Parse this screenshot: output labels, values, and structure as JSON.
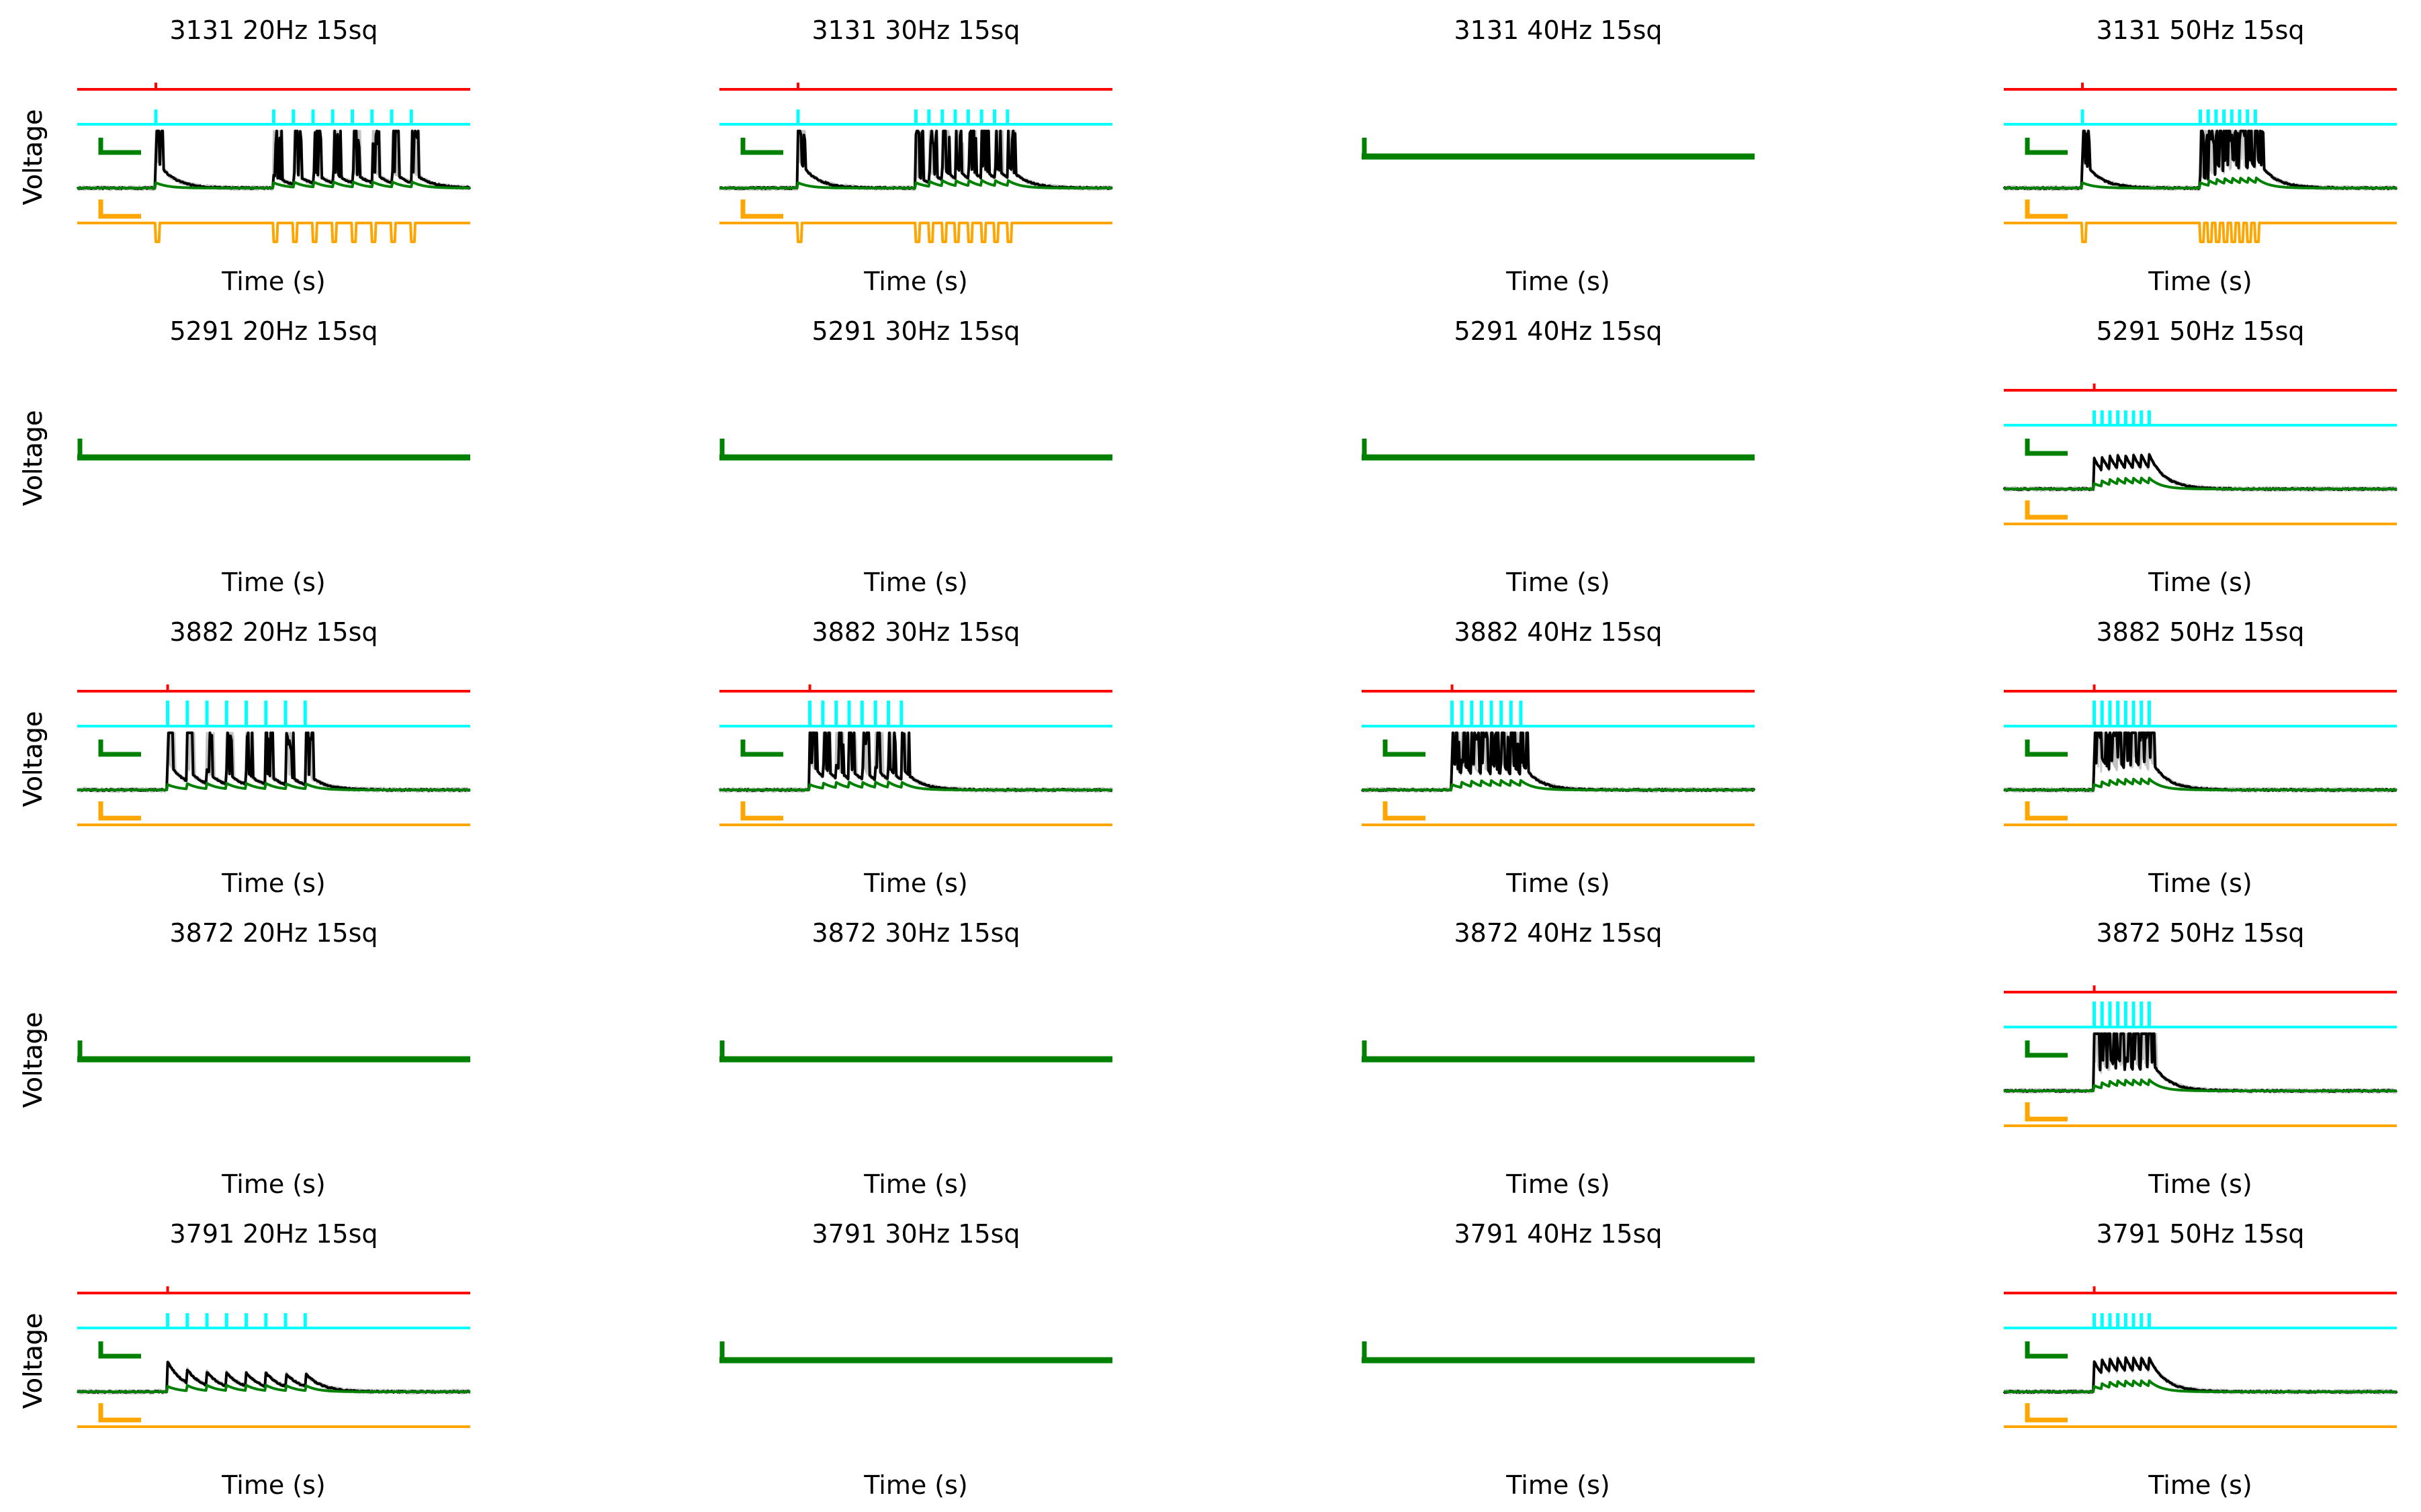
{
  "figure": {
    "ylabel": "Voltage",
    "xlabel": "Time (s)",
    "colors": {
      "stim_marker": "#ff0000",
      "pulse_train": "#00ffff",
      "trial_traces": "#bfbfbf",
      "mean_trace": "#000000",
      "model_trace": "#008000",
      "current_trace": "#ffa500"
    }
  },
  "chart_data": [
    {
      "type": "line",
      "title": "3131 20Hz 15sq",
      "cell": "3131",
      "freq_hz": 20,
      "condition": "15sq",
      "has_data": true,
      "xlim": [
        0,
        1
      ],
      "pulse_times": [
        0.2,
        0.5,
        0.55,
        0.6,
        0.65,
        0.7,
        0.75,
        0.8,
        0.85
      ],
      "spiking": true,
      "inward_current": true
    },
    {
      "type": "line",
      "title": "3131 30Hz 15sq",
      "cell": "3131",
      "freq_hz": 30,
      "condition": "15sq",
      "has_data": true,
      "xlim": [
        0,
        1
      ],
      "pulse_times": [
        0.2,
        0.5,
        0.533,
        0.567,
        0.6,
        0.633,
        0.667,
        0.7,
        0.733
      ],
      "spiking": true,
      "inward_current": true
    },
    {
      "type": "line",
      "title": "3131 40Hz 15sq",
      "cell": "3131",
      "freq_hz": 40,
      "condition": "15sq",
      "has_data": false
    },
    {
      "type": "line",
      "title": "3131 50Hz 15sq",
      "cell": "3131",
      "freq_hz": 50,
      "condition": "15sq",
      "has_data": true,
      "xlim": [
        0,
        1
      ],
      "pulse_times": [
        0.2,
        0.5,
        0.52,
        0.54,
        0.56,
        0.58,
        0.6,
        0.62,
        0.64
      ],
      "spiking": true,
      "inward_current": true
    },
    {
      "type": "line",
      "title": "5291 20Hz 15sq",
      "cell": "5291",
      "freq_hz": 20,
      "condition": "15sq",
      "has_data": false
    },
    {
      "type": "line",
      "title": "5291 30Hz 15sq",
      "cell": "5291",
      "freq_hz": 30,
      "condition": "15sq",
      "has_data": false
    },
    {
      "type": "line",
      "title": "5291 40Hz 15sq",
      "cell": "5291",
      "freq_hz": 40,
      "condition": "15sq",
      "has_data": false
    },
    {
      "type": "line",
      "title": "5291 50Hz 15sq",
      "cell": "5291",
      "freq_hz": 50,
      "condition": "15sq",
      "has_data": true,
      "xlim": [
        0,
        1
      ],
      "pulse_times": [
        0.23,
        0.25,
        0.27,
        0.29,
        0.31,
        0.33,
        0.35,
        0.37
      ],
      "spiking": false,
      "inward_current": false
    },
    {
      "type": "line",
      "title": "3882 20Hz 15sq",
      "cell": "3882",
      "freq_hz": 20,
      "condition": "15sq",
      "has_data": true,
      "xlim": [
        0,
        1
      ],
      "pulse_times": [
        0.23,
        0.28,
        0.33,
        0.38,
        0.43,
        0.48,
        0.53,
        0.58
      ],
      "spiking": true,
      "inward_current": false
    },
    {
      "type": "line",
      "title": "3882 30Hz 15sq",
      "cell": "3882",
      "freq_hz": 30,
      "condition": "15sq",
      "has_data": true,
      "xlim": [
        0,
        1
      ],
      "pulse_times": [
        0.23,
        0.263,
        0.297,
        0.33,
        0.363,
        0.397,
        0.43,
        0.463
      ],
      "spiking": true,
      "inward_current": false
    },
    {
      "type": "line",
      "title": "3882 40Hz 15sq",
      "cell": "3882",
      "freq_hz": 40,
      "condition": "15sq",
      "has_data": true,
      "xlim": [
        0,
        1
      ],
      "pulse_times": [
        0.23,
        0.255,
        0.28,
        0.305,
        0.33,
        0.355,
        0.38,
        0.405
      ],
      "spiking": true,
      "inward_current": false
    },
    {
      "type": "line",
      "title": "3882 50Hz 15sq",
      "cell": "3882",
      "freq_hz": 50,
      "condition": "15sq",
      "has_data": true,
      "xlim": [
        0,
        1
      ],
      "pulse_times": [
        0.23,
        0.25,
        0.27,
        0.29,
        0.31,
        0.33,
        0.35,
        0.37
      ],
      "spiking": true,
      "inward_current": false
    },
    {
      "type": "line",
      "title": "3872 20Hz 15sq",
      "cell": "3872",
      "freq_hz": 20,
      "condition": "15sq",
      "has_data": false
    },
    {
      "type": "line",
      "title": "3872 30Hz 15sq",
      "cell": "3872",
      "freq_hz": 30,
      "condition": "15sq",
      "has_data": false
    },
    {
      "type": "line",
      "title": "3872 40Hz 15sq",
      "cell": "3872",
      "freq_hz": 40,
      "condition": "15sq",
      "has_data": false
    },
    {
      "type": "line",
      "title": "3872 50Hz 15sq",
      "cell": "3872",
      "freq_hz": 50,
      "condition": "15sq",
      "has_data": true,
      "xlim": [
        0,
        1
      ],
      "pulse_times": [
        0.23,
        0.25,
        0.27,
        0.29,
        0.31,
        0.33,
        0.35,
        0.37
      ],
      "spiking": true,
      "inward_current": false
    },
    {
      "type": "line",
      "title": "3791 20Hz 15sq",
      "cell": "3791",
      "freq_hz": 20,
      "condition": "15sq",
      "has_data": true,
      "xlim": [
        0,
        1
      ],
      "pulse_times": [
        0.23,
        0.28,
        0.33,
        0.38,
        0.43,
        0.48,
        0.53,
        0.58
      ],
      "spiking": false,
      "inward_current": false
    },
    {
      "type": "line",
      "title": "3791 30Hz 15sq",
      "cell": "3791",
      "freq_hz": 30,
      "condition": "15sq",
      "has_data": false
    },
    {
      "type": "line",
      "title": "3791 40Hz 15sq",
      "cell": "3791",
      "freq_hz": 40,
      "condition": "15sq",
      "has_data": false
    },
    {
      "type": "line",
      "title": "3791 50Hz 15sq",
      "cell": "3791",
      "freq_hz": 50,
      "condition": "15sq",
      "has_data": true,
      "xlim": [
        0,
        1
      ],
      "pulse_times": [
        0.23,
        0.25,
        0.27,
        0.29,
        0.31,
        0.33,
        0.35,
        0.37
      ],
      "spiking": false,
      "inward_current": false
    }
  ]
}
